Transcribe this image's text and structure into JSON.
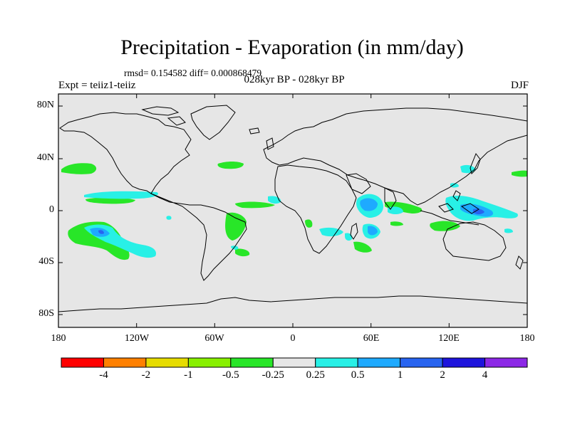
{
  "title": "Precipitation - Evaporation (in mm/day)",
  "stats": "rmsd= 0.154582  diff= 0.000868479",
  "period": "028kyr BP - 028kyr BP",
  "experiment": "Expt = teiiz1-teiiz",
  "season": "DJF",
  "map": {
    "lat_ticks": [
      "80N",
      "40N",
      "0",
      "40S",
      "80S"
    ],
    "lon_ticks": [
      "180",
      "120W",
      "60W",
      "0",
      "60E",
      "120E",
      "180"
    ],
    "background_color": "#e6e6e6",
    "coastline_color": "#000000"
  },
  "colorbar": {
    "labels": [
      "-4",
      "-2",
      "-1",
      "-0.5",
      "-0.25",
      "0.25",
      "0.5",
      "1",
      "2",
      "4"
    ],
    "colors": [
      "#ff0000",
      "#ff8000",
      "#e6dc00",
      "#88f000",
      "#28e628",
      "#e6e6e6",
      "#28f0e6",
      "#1eaaff",
      "#2864f0",
      "#1e14dc",
      "#8c28e6"
    ]
  }
}
